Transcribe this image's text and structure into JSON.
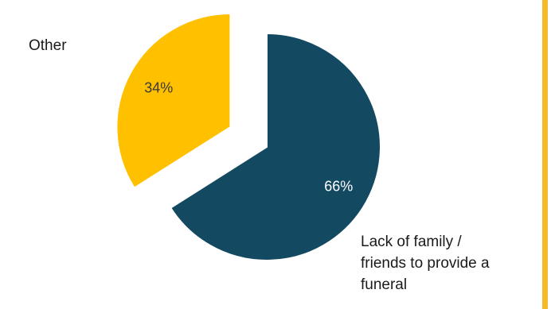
{
  "chart_data": {
    "type": "pie",
    "title": "",
    "slices": [
      {
        "name": "Lack of family  /\nfriends to provide a\nfuneral",
        "value": 66,
        "value_label": "66%",
        "color": "#134a62",
        "label_color": "#ffffff",
        "exploded": false
      },
      {
        "name": "Other",
        "value": 34,
        "value_label": "34%",
        "color": "#ffc000",
        "label_color": "#3a3a3a",
        "exploded": true
      }
    ]
  },
  "accent_color": "#f5b92a"
}
